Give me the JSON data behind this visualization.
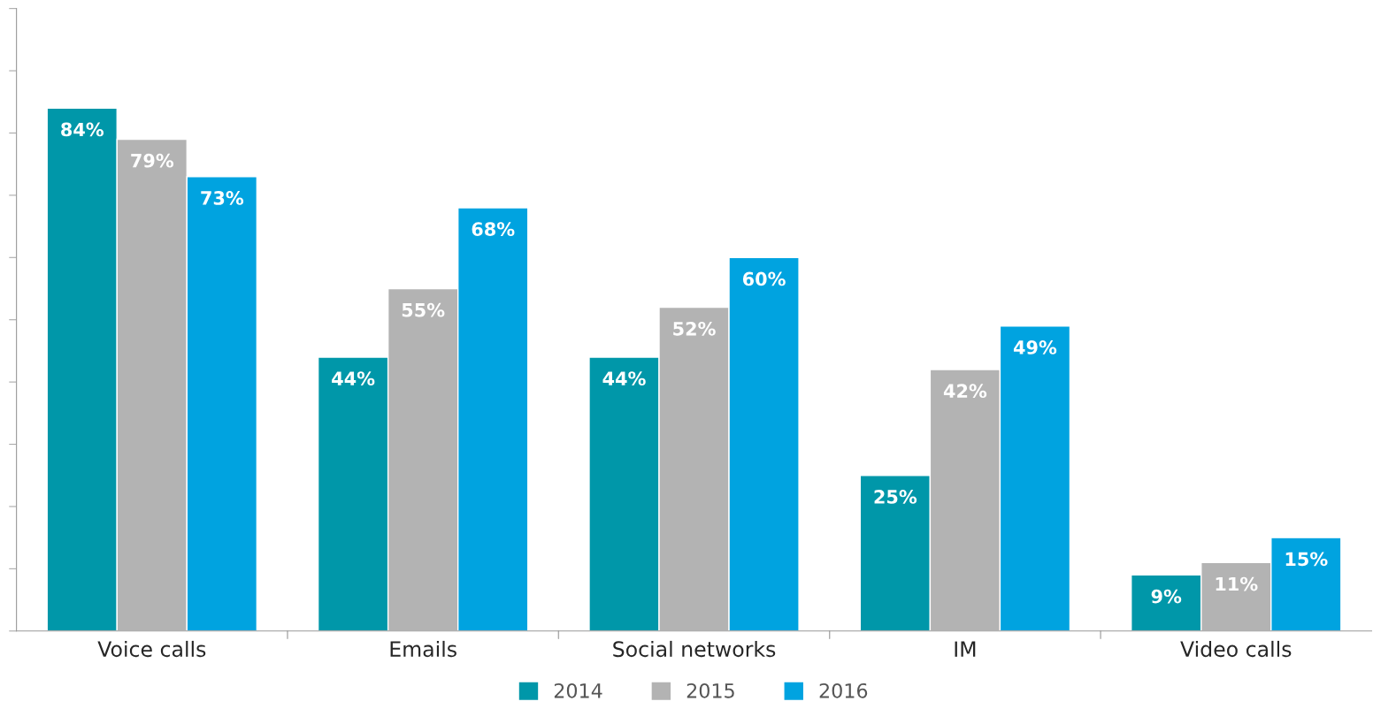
{
  "chart_data": {
    "type": "bar",
    "categories": [
      "Voice calls",
      "Emails",
      "Social networks",
      "IM",
      "Video calls"
    ],
    "series": [
      {
        "name": "2014",
        "color": "#0097a9",
        "values": [
          84,
          44,
          44,
          25,
          9
        ],
        "value_labels": [
          "84%",
          "44%",
          "44%",
          "25%",
          "9%"
        ]
      },
      {
        "name": "2015",
        "color": "#b3b3b3",
        "values": [
          79,
          55,
          52,
          42,
          11
        ],
        "value_labels": [
          "79%",
          "55%",
          "52%",
          "42%",
          "11%"
        ]
      },
      {
        "name": "2016",
        "color": "#00a3e0",
        "values": [
          73,
          68,
          60,
          49,
          15
        ],
        "value_labels": [
          "73%",
          "68%",
          "60%",
          "49%",
          "15%"
        ]
      }
    ],
    "ylim": [
      0,
      100
    ],
    "yticks": [
      {
        "value": 0,
        "label": null
      },
      {
        "value": 10,
        "label": null
      },
      {
        "value": 20,
        "label": null
      },
      {
        "value": 30,
        "label": null
      },
      {
        "value": 40,
        "label": null
      },
      {
        "value": 50,
        "label": null
      },
      {
        "value": 60,
        "label": null
      },
      {
        "value": 70,
        "label": null
      },
      {
        "value": 80,
        "label": null
      },
      {
        "value": 90,
        "label": null
      },
      {
        "value": 100,
        "label": null
      }
    ],
    "tick_labels": "x",
    "grid": false,
    "legend": "bottom"
  }
}
